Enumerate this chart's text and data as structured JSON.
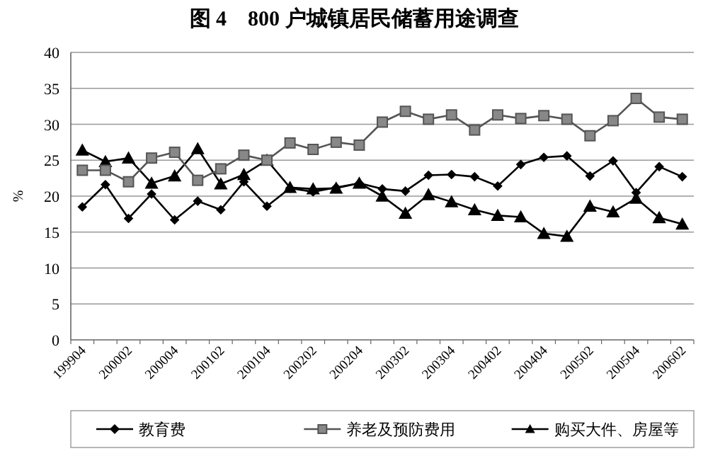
{
  "chart_data": {
    "type": "line",
    "title": "图 4　800 户城镇居民储蓄用途调查",
    "ylabel": "%",
    "categories": [
      "199904",
      null,
      "200002",
      null,
      "200004",
      null,
      "200102",
      null,
      "200104",
      null,
      "200202",
      null,
      "200204",
      null,
      "200302",
      null,
      "200304",
      null,
      "200402",
      null,
      "200404",
      null,
      "200502",
      null,
      "200504",
      null,
      "200602"
    ],
    "series": [
      {
        "name": "教育费",
        "color": "#000000",
        "marker": "diamond",
        "values": [
          18.5,
          21.6,
          16.9,
          20.3,
          16.7,
          19.3,
          18.1,
          22.0,
          18.6,
          21.1,
          20.6,
          21.2,
          21.8,
          21.0,
          20.7,
          22.9,
          23.0,
          22.7,
          21.4,
          24.4,
          25.4,
          25.6,
          22.8,
          24.9,
          20.5,
          24.1,
          22.7
        ]
      },
      {
        "name": "养老及预防费用",
        "color": "#555555",
        "marker": "square",
        "values": [
          23.6,
          23.6,
          22.0,
          25.3,
          26.1,
          22.2,
          23.8,
          25.7,
          25.0,
          27.4,
          26.5,
          27.5,
          27.1,
          30.3,
          31.8,
          30.7,
          31.3,
          29.2,
          31.3,
          30.8,
          31.2,
          30.7,
          28.4,
          30.5,
          33.6,
          31.0,
          30.7
        ]
      },
      {
        "name": "购买大件、房屋等",
        "color": "#000000",
        "marker": "triangle",
        "values": [
          26.4,
          24.8,
          25.3,
          21.8,
          22.8,
          26.6,
          21.7,
          23.0,
          25.0,
          21.2,
          21.0,
          21.1,
          21.8,
          20.0,
          17.6,
          20.2,
          19.2,
          18.1,
          17.3,
          17.1,
          14.8,
          14.4,
          18.6,
          17.8,
          19.7,
          17.0,
          16.1
        ]
      }
    ],
    "ylim": [
      0,
      40
    ],
    "yticks": [
      0,
      5,
      10,
      15,
      20,
      25,
      30,
      35,
      40
    ],
    "grid": "y",
    "legend": "bottom"
  }
}
